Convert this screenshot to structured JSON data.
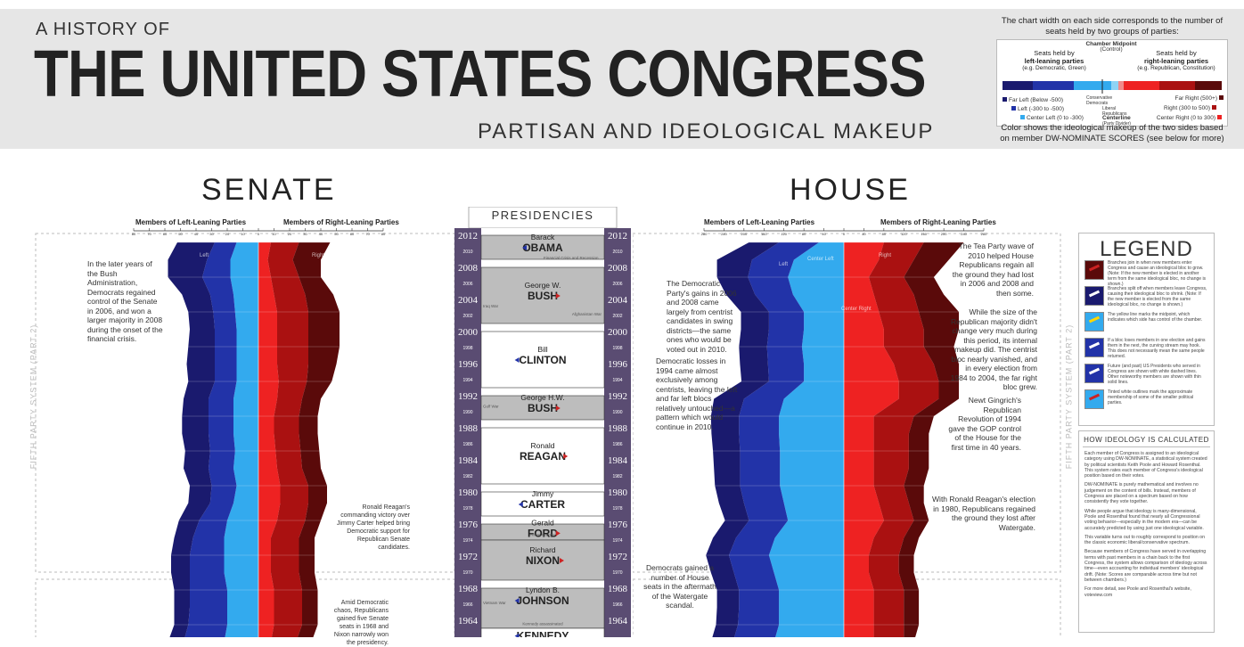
{
  "header": {
    "pre_title": "A HISTORY OF",
    "title": "THE UNITED STATES CONGRESS",
    "subtitle": "PARTISAN AND IDEOLOGICAL MAKEUP"
  },
  "key": {
    "top_text_1": "The chart width on each side corresponds to the number of",
    "top_text_2": "seats held by two groups of parties:",
    "chamber_midpoint": "Chamber Midpoint",
    "control": "(Control)",
    "left_heading_1": "Seats held by",
    "left_heading_2": "left-leaning parties",
    "left_example": "(e.g. Democratic, Green)",
    "right_heading_1": "Seats held by",
    "right_heading_2": "right-leaning parties",
    "right_example": "(e.g. Republican, Constitution)",
    "far_left": "Far Left (Below -500)",
    "left": "Left (-300 to -500)",
    "center_left": "Center Left (0 to -300)",
    "conservative_democrats": "Conservative Democrats",
    "liberal_republicans": "Liberal Republicans",
    "centerline": "Centerline",
    "party_divider": "(Party Divider)",
    "far_right": "Far Right (500+)",
    "right": "Right (300 to 500)",
    "center_right": "Center Right (0 to 300)",
    "bottom_text_1": "Color shows the ideological makeup of the two sides based",
    "bottom_text_2": "on member DW-NOMINATE SCORES (see below for more)",
    "colors": {
      "far_left": "#1a1a6e",
      "left": "#2233a8",
      "center_left": "#33aaee",
      "center_right": "#ee2222",
      "right": "#aa1111",
      "far_right": "#5a0a0a"
    }
  },
  "senate": {
    "title": "SENATE",
    "axis_left": "Members of Left-Leaning Parties",
    "axis_right": "Members of Right-Leaning Parties",
    "ticks": [
      "80",
      "70",
      "60",
      "50",
      "40",
      "30",
      "20",
      "10",
      "0",
      "10",
      "20",
      "30",
      "40",
      "50",
      "60",
      "70",
      "80"
    ],
    "inner_labels": {
      "left": "Left",
      "right": "Right"
    },
    "annotations": [
      "In the later years of the Bush Administration, Democrats regained control of the Senate in 2006, and won a larger majority in 2008 during the onset of the financial crisis.",
      "Ronald Reagan's commanding victory over Jimmy Carter helped bring Democratic support for Republican Senate candidates.",
      "Amid Democratic chaos, Republicans gained five Senate seats in 1968 and Nixon narrowly won the presidency."
    ],
    "side_label": "FIFTH PARTY SYSTEM (PART 2)"
  },
  "house": {
    "title": "HOUSE",
    "axis_left": "Members of Left-Leaning Parties",
    "axis_right": "Members of Right-Leaning Parties",
    "ticks": [
      "280",
      "240",
      "200",
      "160",
      "120",
      "80",
      "40",
      "0",
      "40",
      "80",
      "120",
      "160",
      "200",
      "240",
      "280"
    ],
    "inner_labels": {
      "left": "Left",
      "center_left": "Center Left",
      "center_right": "Center Right",
      "right": "Right"
    },
    "annotations": [
      "The Democratic Party's gains in 2006 and 2008 came largely from centrist candidates in swing districts—the same ones who would be voted out in 2010.",
      "Democratic losses in 1994 came almost exclusively among centrists, leaving the left and far left blocs relatively untouched—a pattern which would continue in 2010.",
      "Democrats gained a number of House seats in the aftermath of the Watergate scandal.",
      "The Tea Party wave of 2010 helped House Republicans regain all the ground they had lost in 2006 and 2008 and then some.",
      "While the size of the Republican majority didn't change very much during this period, its internal makeup did. The centrist bloc nearly vanished, and in every election from 1984 to 2004, the far right bloc grew.",
      "Newt Gingrich's Republican Revolution of 1994 gave the GOP control of the House for the first time in 40 years.",
      "With Ronald Reagan's election in 1980, Republicans regained the ground they lost after Watergate."
    ],
    "side_label": "FIFTH PARTY SYSTEM (PART 2)"
  },
  "presidencies": {
    "title": "PRESIDENCIES",
    "years_big": [
      "2012",
      "2008",
      "2004",
      "2000",
      "1996",
      "1992",
      "1988",
      "1984",
      "1980",
      "1976",
      "1972",
      "1968",
      "1964"
    ],
    "years_small": [
      "2010",
      "2006",
      "2002",
      "1998",
      "1994",
      "1990",
      "1986",
      "1982",
      "1978",
      "1974",
      "1970",
      "1966"
    ],
    "presidents": [
      {
        "first": "Barack",
        "last": "OBAMA",
        "party": "D"
      },
      {
        "first": "George W.",
        "last": "BUSH",
        "party": "R"
      },
      {
        "first": "Bill",
        "last": "CLINTON",
        "party": "D"
      },
      {
        "first": "George H.W.",
        "last": "BUSH",
        "party": "R"
      },
      {
        "first": "Ronald",
        "last": "REAGAN",
        "party": "R"
      },
      {
        "first": "Jimmy",
        "last": "CARTER",
        "party": "D"
      },
      {
        "first": "Gerald",
        "last": "FORD",
        "party": "R"
      },
      {
        "first": "Richard",
        "last": "NIXON",
        "party": "R"
      },
      {
        "first": "Lyndon B.",
        "last": "JOHNSON",
        "party": "D"
      },
      {
        "first": "",
        "last": "KENNEDY",
        "party": "D"
      }
    ],
    "events": [
      "Financial Crisis and Recession",
      "Iraq War",
      "Afghanistan War",
      "Gulf War",
      "Nixon resigns",
      "Vietnam War",
      "Kennedy assassinated"
    ]
  },
  "legend": {
    "title": "LEGEND",
    "items": [
      "Branches join in when new members enter Congress and cause an ideological bloc to grow. (Note: If the new member is elected in another term from the same ideological bloc, no change is shown.)",
      "Branches split off when members leave Congress, causing their ideological bloc to shrink. (Note: If the new member is elected from the same ideological bloc, no change is shown.)",
      "The yellow line marks the midpoint, which indicates which side has control of the chamber.",
      "If a bloc loses members in one election and gains them in the next, the curving stream may hook. This does not necessarily mean the same people returned.",
      "Future (and past) US Presidents who served in Congress are shown with white dashed lines. Other noteworthy members are shown with thin solid lines.",
      "Tinted white outlines mark the approximate membership of some of the smaller political parties."
    ]
  },
  "how": {
    "title": "HOW IDEOLOGY IS CALCULATED",
    "paragraphs": [
      "Each member of Congress is assigned to an ideological category using DW-NOMINATE, a statistical system created by political scientists Keith Poole and Howard Rosenthal. This system rates each member of Congress's ideological position based on their votes.",
      "DW-NOMINATE is purely mathematical and involves no judgement on the content of bills. Instead, members of Congress are placed on a spectrum based on how consistently they vote together.",
      "While people argue that ideology is many-dimensional, Poole and Rosenthal found that nearly all Congressional voting behavior—especially in the modern era—can be accurately predicted by using just one ideological variable.",
      "This variable turns out to roughly correspond to position on the classic economic liberal/conservative spectrum.",
      "Because members of Congress have served in overlapping terms with past members in a chain back to the first Congress, the system allows comparison of ideology across time—even accounting for individual members' ideological drift. (Note: Scores are comparable across time but not between chambers.)",
      "For more detail, see Poole and Rosenthal's website, voteview.com"
    ]
  },
  "chart_data": [
    {
      "type": "area",
      "title": "SENATE",
      "xlabel_left": "Members of Left-Leaning Parties",
      "xlabel_right": "Members of Right-Leaning Parties",
      "xlim": [
        -80,
        80
      ],
      "x_ticks": [
        -80,
        -70,
        -60,
        -50,
        -40,
        -30,
        -20,
        -10,
        0,
        10,
        20,
        30,
        40,
        50,
        60,
        70,
        80
      ],
      "y_years": [
        2012,
        2010,
        2008,
        2006,
        2004,
        2002,
        2000,
        1998,
        1996,
        1994,
        1992,
        1990,
        1988,
        1986,
        1984,
        1982,
        1980,
        1978,
        1976,
        1974,
        1972,
        1970,
        1968,
        1966,
        1964
      ],
      "series": [
        {
          "name": "Far Left",
          "values": [
            24,
            25,
            22,
            18,
            16,
            16,
            17,
            18,
            17,
            16,
            17,
            17,
            16,
            16,
            14,
            14,
            13,
            12,
            12,
            12,
            10,
            10,
            9,
            10,
            10
          ]
        },
        {
          "name": "Left",
          "values": [
            14,
            15,
            18,
            15,
            14,
            14,
            14,
            14,
            14,
            16,
            16,
            16,
            16,
            16,
            16,
            15,
            18,
            20,
            22,
            22,
            24,
            24,
            25,
            26,
            27
          ]
        },
        {
          "name": "Center Left",
          "values": [
            14,
            18,
            18,
            16,
            15,
            14,
            14,
            14,
            14,
            16,
            16,
            16,
            15,
            16,
            14,
            16,
            20,
            22,
            22,
            22,
            20,
            20,
            20,
            22,
            28
          ]
        },
        {
          "name": "Center Right",
          "values": [
            8,
            6,
            8,
            10,
            12,
            12,
            12,
            12,
            13,
            12,
            10,
            10,
            11,
            12,
            14,
            14,
            12,
            8,
            8,
            8,
            10,
            10,
            10,
            8,
            6
          ]
        },
        {
          "name": "Right",
          "values": [
            18,
            16,
            18,
            20,
            20,
            20,
            20,
            20,
            18,
            16,
            16,
            16,
            16,
            16,
            18,
            18,
            18,
            18,
            18,
            18,
            18,
            18,
            18,
            16,
            14
          ]
        },
        {
          "name": "Far Right",
          "values": [
            20,
            18,
            14,
            18,
            20,
            20,
            20,
            18,
            16,
            12,
            12,
            12,
            12,
            12,
            12,
            12,
            10,
            10,
            10,
            10,
            10,
            10,
            10,
            10,
            10
          ]
        }
      ]
    },
    {
      "type": "area",
      "title": "HOUSE",
      "xlabel_left": "Members of Left-Leaning Parties",
      "xlabel_right": "Members of Right-Leaning Parties",
      "xlim": [
        -280,
        280
      ],
      "x_ticks": [
        -280,
        -240,
        -200,
        -160,
        -120,
        -80,
        -40,
        0,
        40,
        80,
        120,
        160,
        200,
        240,
        280
      ],
      "y_years": [
        2012,
        2010,
        2008,
        2006,
        2004,
        2002,
        2000,
        1998,
        1996,
        1994,
        1992,
        1990,
        1988,
        1986,
        1984,
        1982,
        1980,
        1978,
        1976,
        1974,
        1972,
        1970,
        1968,
        1966,
        1964
      ],
      "series": [
        {
          "name": "Far Left",
          "values": [
            60,
            70,
            62,
            58,
            56,
            56,
            56,
            56,
            55,
            60,
            56,
            55,
            54,
            52,
            50,
            50,
            48,
            46,
            46,
            46,
            44,
            44,
            44,
            44,
            40
          ]
        },
        {
          "name": "Left",
          "values": [
            80,
            84,
            80,
            76,
            70,
            70,
            70,
            72,
            70,
            80,
            80,
            80,
            80,
            80,
            80,
            80,
            78,
            78,
            80,
            80,
            80,
            80,
            82,
            82,
            80
          ]
        },
        {
          "name": "Center Left",
          "values": [
            50,
            100,
            112,
            102,
            80,
            80,
            84,
            80,
            80,
            120,
            130,
            130,
            128,
            128,
            128,
            120,
            112,
            138,
            150,
            140,
            130,
            130,
            130,
            140,
            175
          ]
        },
        {
          "name": "Center Right",
          "values": [
            80,
            70,
            50,
            60,
            70,
            80,
            80,
            100,
            110,
            110,
            60,
            60,
            60,
            60,
            60,
            70,
            80,
            60,
            50,
            50,
            60,
            60,
            60,
            60,
            40
          ]
        },
        {
          "name": "Right",
          "values": [
            80,
            70,
            70,
            80,
            80,
            80,
            80,
            80,
            80,
            80,
            80,
            70,
            70,
            70,
            60,
            60,
            60,
            60,
            60,
            60,
            60,
            60,
            60,
            60,
            60
          ]
        },
        {
          "name": "Far Right",
          "values": [
            80,
            70,
            60,
            60,
            80,
            70,
            60,
            50,
            40,
            40,
            40,
            40,
            40,
            40,
            40,
            30,
            30,
            30,
            30,
            30,
            30,
            30,
            30,
            20,
            20
          ]
        }
      ]
    }
  ]
}
